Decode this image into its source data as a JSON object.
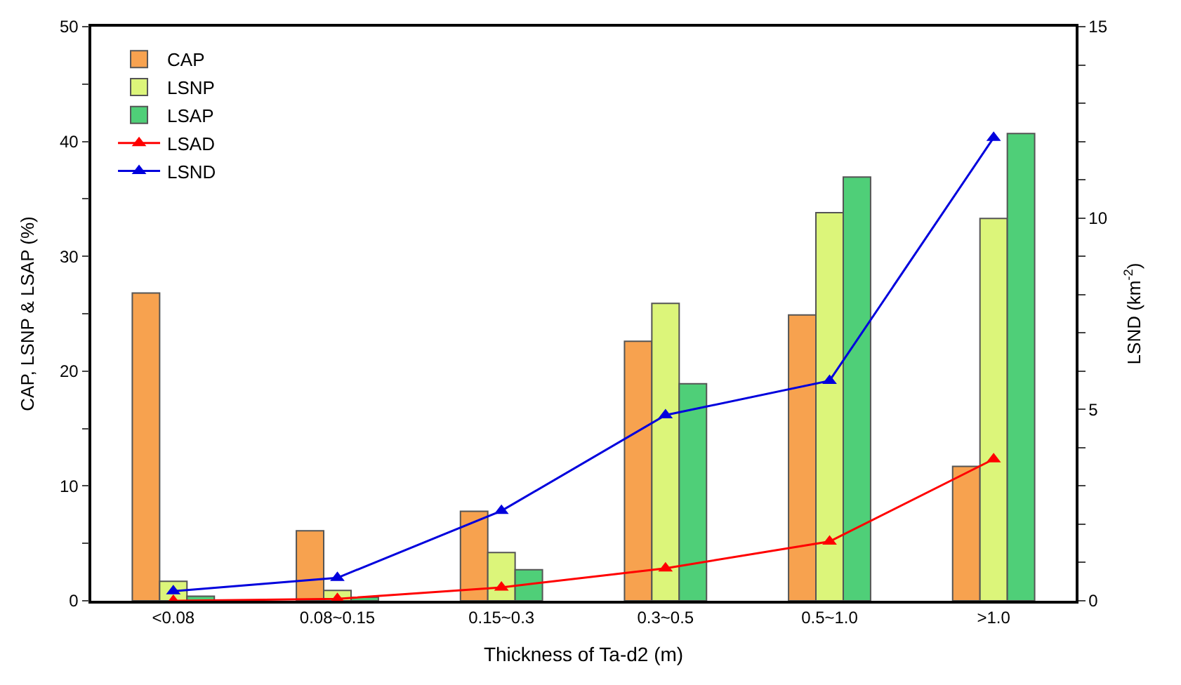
{
  "chart_data": {
    "type": "bar",
    "xlabel": "Thickness of Ta-d2 (m)",
    "ylabel": "CAP, LSNP & LSAP (%)",
    "y2label": "LSND (km$^{-2}$)",
    "categories": [
      "<0.08",
      "0.08~0.15",
      "0.15~0.3",
      "0.3~0.5",
      "0.5~1.0",
      ">1.0"
    ],
    "series": [
      {
        "name": "CAP",
        "color": "#f7a24f",
        "values": [
          26.8,
          6.1,
          7.8,
          22.6,
          24.9,
          11.7
        ]
      },
      {
        "name": "LSNP",
        "color": "#dcf57a",
        "values": [
          1.7,
          0.9,
          4.2,
          25.9,
          33.8,
          33.3
        ]
      },
      {
        "name": "LSAP",
        "color": "#4fcf78",
        "values": [
          0.4,
          0.3,
          2.7,
          18.9,
          36.9,
          40.7
        ]
      },
      {
        "name": "LSAD",
        "type": "line",
        "axis": "y2",
        "color": "#ff0000",
        "values": [
          0.0,
          0.05,
          0.35,
          0.85,
          1.55,
          3.7
        ]
      },
      {
        "name": "LSND",
        "type": "line",
        "axis": "y2",
        "color": "#0000dd",
        "values": [
          0.25,
          0.6,
          2.35,
          4.85,
          5.75,
          12.1
        ]
      }
    ],
    "ylim": [
      0,
      50
    ],
    "yticks": [
      0,
      {
        "value": 5,
        "label": null
      },
      10,
      {
        "value": 15,
        "label": null
      },
      20,
      {
        "value": 25,
        "label": null
      },
      30,
      {
        "value": 35,
        "label": null
      },
      40,
      {
        "value": 45,
        "label": null
      },
      50
    ],
    "y2lim": [
      0,
      15
    ],
    "y2ticks": [
      0,
      {
        "value": 1,
        "label": null
      },
      {
        "value": 2,
        "label": null
      },
      {
        "value": 3,
        "label": null
      },
      {
        "value": 4,
        "label": null
      },
      5,
      {
        "value": 6,
        "label": null
      },
      {
        "value": 7,
        "label": null
      },
      {
        "value": 8,
        "label": null
      },
      {
        "value": 9,
        "label": null
      },
      10,
      {
        "value": 11,
        "label": null
      },
      {
        "value": 12,
        "label": null
      },
      {
        "value": 13,
        "label": null
      },
      {
        "value": 14,
        "label": null
      },
      15
    ],
    "marker": "triangle",
    "line_style": "solid",
    "legend": "top left"
  }
}
